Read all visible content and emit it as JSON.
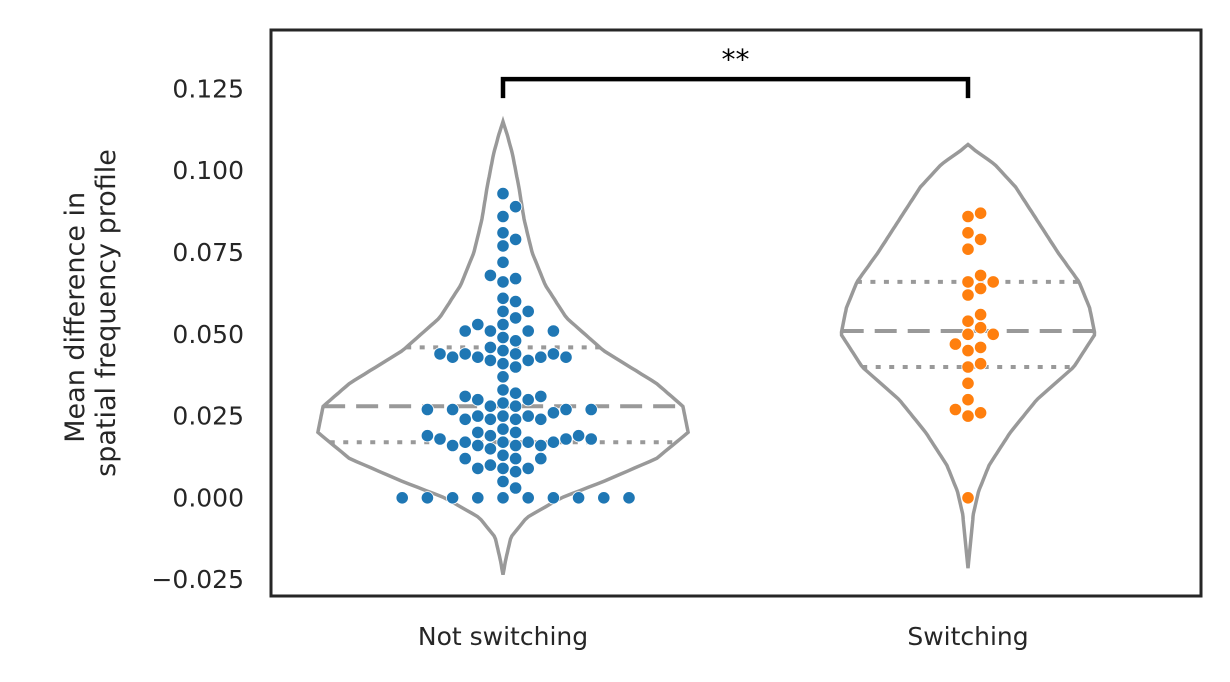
{
  "chart_data": {
    "type": "violin-swarm",
    "ylabel_lines": [
      "Mean difference in",
      "spatial frequency profile"
    ],
    "categories": [
      "Not switching",
      "Switching"
    ],
    "ylim": [
      -0.03,
      0.143
    ],
    "yticks": [
      -0.025,
      0.0,
      0.025,
      0.05,
      0.075,
      0.1,
      0.125
    ],
    "ytick_labels": [
      "−0.025",
      "0.000",
      "0.025",
      "0.050",
      "0.075",
      "0.100",
      "0.125"
    ],
    "grid": false,
    "colors": {
      "Not switching": "#1f77b4",
      "Switching": "#ff7f0e",
      "violin": "#999999",
      "bracket": "#000000"
    },
    "significance": {
      "label": "**",
      "between": [
        "Not switching",
        "Switching"
      ],
      "y": 0.128
    },
    "violins": [
      {
        "category": "Not switching",
        "y_min": -0.0235,
        "y_max": 0.115,
        "quartiles": {
          "q1": 0.017,
          "median": 0.028,
          "q3": 0.046
        },
        "profile": [
          [
            -0.0235,
            0.0
          ],
          [
            -0.019,
            0.005
          ],
          [
            -0.012,
            0.015
          ],
          [
            -0.006,
            0.045
          ],
          [
            0.0,
            0.11
          ],
          [
            0.005,
            0.19
          ],
          [
            0.012,
            0.29
          ],
          [
            0.02,
            0.35
          ],
          [
            0.028,
            0.34
          ],
          [
            0.035,
            0.29
          ],
          [
            0.045,
            0.19
          ],
          [
            0.055,
            0.12
          ],
          [
            0.065,
            0.08
          ],
          [
            0.075,
            0.055
          ],
          [
            0.085,
            0.04
          ],
          [
            0.095,
            0.03
          ],
          [
            0.105,
            0.018
          ],
          [
            0.111,
            0.008
          ],
          [
            0.115,
            0.0
          ]
        ]
      },
      {
        "category": "Switching",
        "y_min": -0.0215,
        "y_max": 0.108,
        "quartiles": {
          "q1": 0.04,
          "median": 0.051,
          "q3": 0.066
        },
        "profile": [
          [
            -0.0215,
            0.0
          ],
          [
            -0.015,
            0.004
          ],
          [
            -0.005,
            0.01
          ],
          [
            0.002,
            0.02
          ],
          [
            0.01,
            0.04
          ],
          [
            0.02,
            0.08
          ],
          [
            0.03,
            0.13
          ],
          [
            0.04,
            0.2
          ],
          [
            0.05,
            0.24
          ],
          [
            0.058,
            0.23
          ],
          [
            0.066,
            0.21
          ],
          [
            0.075,
            0.17
          ],
          [
            0.085,
            0.13
          ],
          [
            0.095,
            0.09
          ],
          [
            0.102,
            0.05
          ],
          [
            0.106,
            0.015
          ],
          [
            0.108,
            0.0
          ]
        ]
      }
    ],
    "points": {
      "Not switching": [
        0.093,
        0.089,
        0.086,
        0.081,
        0.079,
        0.077,
        0.072,
        0.068,
        0.067,
        0.066,
        0.061,
        0.06,
        0.057,
        0.057,
        0.055,
        0.053,
        0.053,
        0.051,
        0.051,
        0.051,
        0.051,
        0.049,
        0.048,
        0.046,
        0.045,
        0.044,
        0.044,
        0.044,
        0.044,
        0.043,
        0.043,
        0.043,
        0.043,
        0.042,
        0.042,
        0.041,
        0.04,
        0.037,
        0.033,
        0.032,
        0.031,
        0.031,
        0.03,
        0.03,
        0.029,
        0.028,
        0.028,
        0.027,
        0.027,
        0.027,
        0.027,
        0.026,
        0.025,
        0.025,
        0.025,
        0.024,
        0.024,
        0.024,
        0.024,
        0.021,
        0.02,
        0.02,
        0.019,
        0.019,
        0.019,
        0.018,
        0.018,
        0.018,
        0.017,
        0.017,
        0.017,
        0.017,
        0.016,
        0.016,
        0.016,
        0.016,
        0.015,
        0.013,
        0.012,
        0.012,
        0.012,
        0.01,
        0.009,
        0.009,
        0.009,
        0.008,
        0.005,
        0.003,
        0.0,
        0.0,
        0.0,
        0.0,
        0.0,
        0.0,
        0.0,
        0.0,
        0.0,
        0.0
      ],
      "Switching": [
        0.087,
        0.086,
        0.081,
        0.079,
        0.076,
        0.068,
        0.066,
        0.066,
        0.064,
        0.062,
        0.056,
        0.054,
        0.052,
        0.05,
        0.05,
        0.047,
        0.046,
        0.045,
        0.041,
        0.04,
        0.035,
        0.03,
        0.027,
        0.026,
        0.025,
        0.0
      ]
    }
  }
}
